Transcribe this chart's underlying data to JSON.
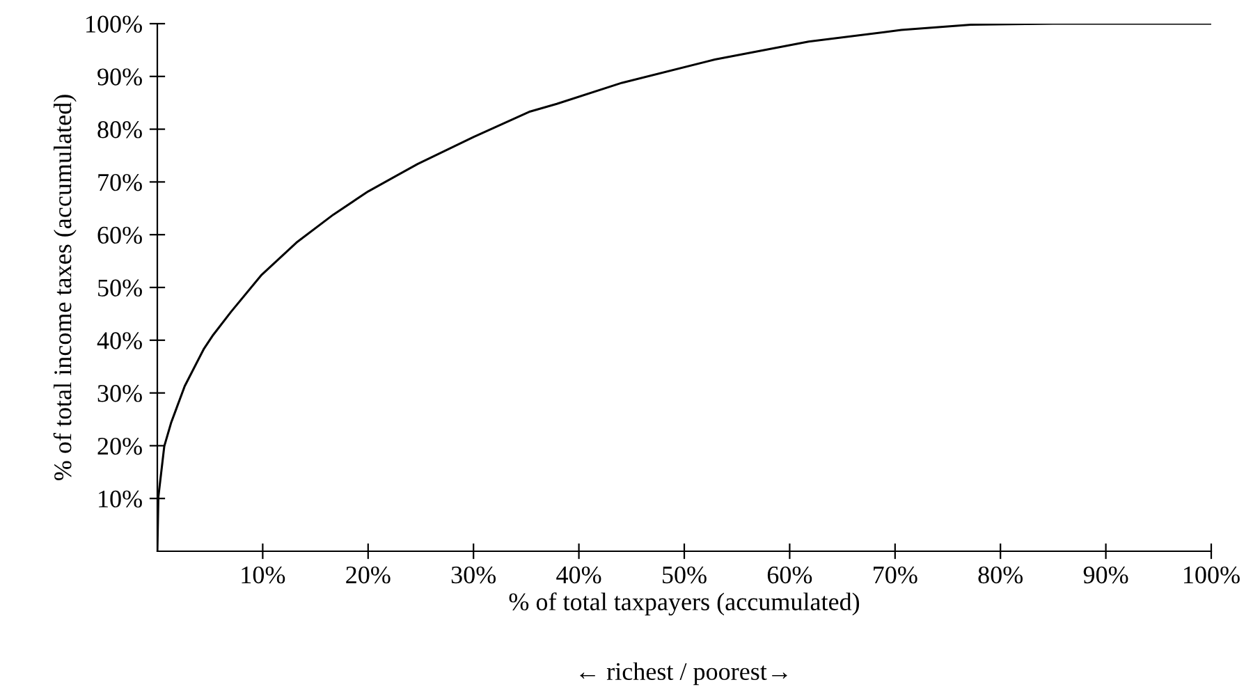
{
  "chart_data": {
    "type": "line",
    "xlabel": "% of total taxpayers (accumulated)",
    "ylabel": "% of total income taxes (accumulated)",
    "annotations": [
      "← richest / poorest→"
    ],
    "x": [
      0,
      0.1,
      0.66,
      1.3,
      2.6,
      4.4,
      5.3,
      7.0,
      9.9,
      13.2,
      16.7,
      20.0,
      24.7,
      30.0,
      35.3,
      37.9,
      44.1,
      52.9,
      61.8,
      70.6,
      77.2,
      85,
      100
    ],
    "series": [
      {
        "color": "#000000",
        "values": [
          0,
          10.3,
          19.9,
          24.3,
          31.3,
          38.3,
          41,
          45.4,
          52.4,
          58.5,
          63.8,
          68.2,
          73.4,
          78.5,
          83.3,
          84.8,
          88.8,
          93.2,
          96.6,
          98.8,
          99.8,
          100,
          100
        ]
      }
    ],
    "xlim": [
      0,
      100
    ],
    "ylim": [
      0,
      100
    ],
    "xticks": [
      {
        "value": 10,
        "label": "10%"
      },
      {
        "value": 20,
        "label": "20%"
      },
      {
        "value": 30,
        "label": "30%"
      },
      {
        "value": 40,
        "label": "40%"
      },
      {
        "value": 50,
        "label": "50%"
      },
      {
        "value": 60,
        "label": "60%"
      },
      {
        "value": 70,
        "label": "70%"
      },
      {
        "value": 80,
        "label": "80%"
      },
      {
        "value": 90,
        "label": "90%"
      },
      {
        "value": 100,
        "label": "100%"
      }
    ],
    "yticks": [
      {
        "value": 10,
        "label": "10%"
      },
      {
        "value": 20,
        "label": "20%"
      },
      {
        "value": 30,
        "label": "30%"
      },
      {
        "value": 40,
        "label": "40%"
      },
      {
        "value": 50,
        "label": "50%"
      },
      {
        "value": 60,
        "label": "60%"
      },
      {
        "value": 70,
        "label": "70%"
      },
      {
        "value": 80,
        "label": "80%"
      },
      {
        "value": 90,
        "label": "90%"
      },
      {
        "value": 100,
        "label": "100%"
      }
    ],
    "grid": false,
    "legend": false,
    "marker": "none",
    "line_style": "solid"
  }
}
